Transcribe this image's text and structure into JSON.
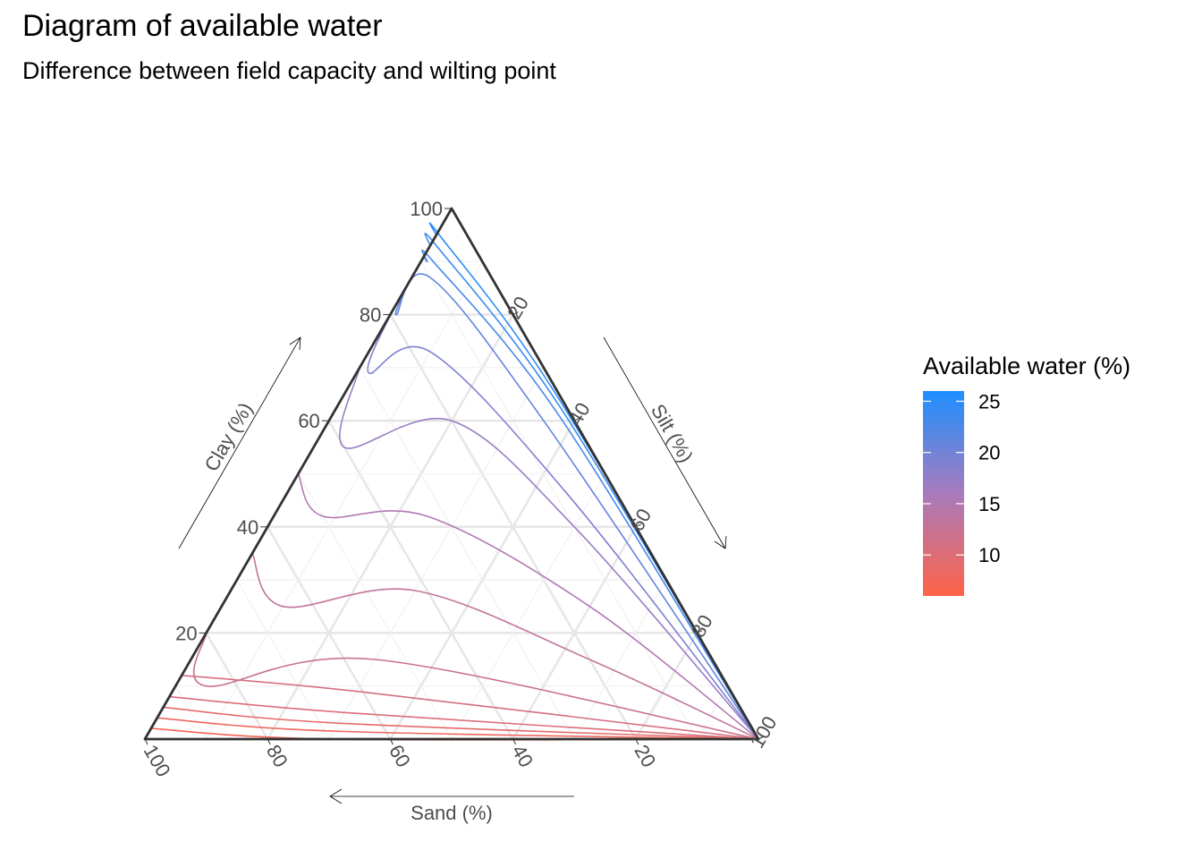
{
  "chart_data": {
    "type": "ternary-contour",
    "title": "Diagram of available water",
    "subtitle": "Difference between field capacity and wilting point",
    "axes": {
      "clay": {
        "label": "Clay (%)",
        "ticks": [
          20,
          40,
          60,
          80,
          100
        ]
      },
      "silt": {
        "label": "Silt (%)",
        "ticks": [
          20,
          40,
          60,
          80,
          100
        ]
      },
      "sand": {
        "label": "Sand (%)",
        "ticks": [
          100,
          80,
          60,
          40,
          20
        ]
      }
    },
    "grid": true,
    "legend": {
      "title": "Available water (%)",
      "placement": "right",
      "range": [
        6,
        26
      ],
      "ticks": [
        25,
        20,
        15,
        10
      ],
      "color_low": "#ff6347",
      "color_mid": "#a87bbd",
      "color_high": "#1e8fff"
    },
    "contours": [
      {
        "level": 7,
        "points": [
          [
            0,
            100,
            0
          ],
          [
            0,
            30,
            70
          ],
          [
            2,
            0,
            98
          ]
        ]
      },
      {
        "level": 8,
        "points": [
          [
            0,
            100,
            0
          ],
          [
            1.5,
            30,
            68.5
          ],
          [
            4,
            0,
            96
          ]
        ]
      },
      {
        "level": 9,
        "points": [
          [
            0,
            100,
            0
          ],
          [
            3,
            30,
            67
          ],
          [
            6,
            0,
            94
          ]
        ]
      },
      {
        "level": 10,
        "points": [
          [
            0,
            100,
            0
          ],
          [
            5,
            30,
            65
          ],
          [
            8,
            0,
            92
          ]
        ]
      },
      {
        "level": 11,
        "points": [
          [
            0,
            100,
            0
          ],
          [
            9,
            30,
            61
          ],
          [
            12,
            0,
            88
          ]
        ]
      },
      {
        "level": 12,
        "points": [
          [
            0,
            100,
            0
          ],
          [
            15,
            30,
            55
          ],
          [
            10,
            5,
            85
          ],
          [
            20,
            0,
            80
          ]
        ]
      },
      {
        "level": 13,
        "points": [
          [
            0,
            100,
            0
          ],
          [
            15,
            65,
            20
          ],
          [
            28,
            30,
            42
          ],
          [
            25,
            10,
            65
          ],
          [
            35,
            0,
            65
          ]
        ]
      },
      {
        "level": 15,
        "points": [
          [
            0,
            100,
            0
          ],
          [
            25,
            60,
            15
          ],
          [
            42,
            25,
            33
          ],
          [
            42,
            8,
            50
          ],
          [
            50,
            0,
            50
          ]
        ]
      },
      {
        "level": 17,
        "points": [
          [
            0,
            100,
            0
          ],
          [
            40,
            50,
            10
          ],
          [
            60,
            20,
            20
          ],
          [
            55,
            5,
            40
          ],
          [
            70,
            0,
            30
          ]
        ]
      },
      {
        "level": 19,
        "points": [
          [
            0,
            100,
            0
          ],
          [
            46,
            46,
            8
          ],
          [
            73,
            10,
            17
          ],
          [
            69,
            2,
            29
          ],
          [
            80,
            0,
            20
          ]
        ]
      },
      {
        "level": 21,
        "points": [
          [
            0,
            100,
            0
          ],
          [
            60,
            35,
            5
          ],
          [
            87,
            3,
            10
          ],
          [
            80,
            1,
            19
          ],
          [
            85,
            0,
            15
          ]
        ]
      },
      {
        "level": 23,
        "points": [
          [
            0,
            100,
            0
          ],
          [
            61,
            37,
            2
          ],
          [
            90,
            2,
            8
          ],
          [
            90,
            1,
            9
          ],
          [
            91,
            0,
            9
          ]
        ]
      },
      {
        "level": 24,
        "points": [
          [
            0,
            100,
            0
          ],
          [
            62,
            37,
            1
          ],
          [
            93,
            1,
            6
          ],
          [
            93,
            0,
            7
          ]
        ]
      },
      {
        "level": 25,
        "points": [
          [
            0,
            100,
            0
          ],
          [
            65,
            34.5,
            0.5
          ],
          [
            95,
            0.5,
            4.5
          ],
          [
            95,
            0,
            5
          ]
        ]
      }
    ]
  }
}
